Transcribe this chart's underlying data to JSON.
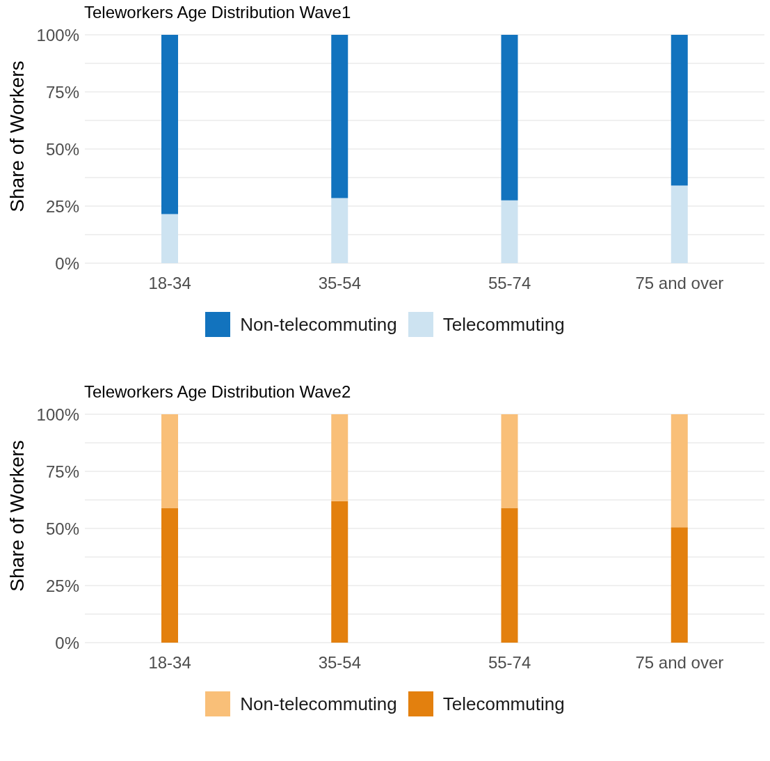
{
  "chart_data": [
    {
      "type": "bar",
      "title": "Teleworkers Age Distribution Wave1",
      "ylabel": "Share of Workers",
      "categories": [
        "18-34",
        "35-54",
        "55-74",
        "75 and over"
      ],
      "stacked": true,
      "series": [
        {
          "name": "Telecommuting",
          "color": "#cde3f1",
          "values": [
            21.5,
            28.5,
            27.5,
            34
          ]
        },
        {
          "name": "Non-telecommuting",
          "color": "#1273be",
          "values": [
            78.5,
            71.5,
            72.5,
            66
          ]
        }
      ],
      "ylim": [
        0,
        100
      ],
      "yticks": [
        {
          "value": 0,
          "label": "0%"
        },
        {
          "value": 12.5,
          "label": null
        },
        {
          "value": 25,
          "label": "25%"
        },
        {
          "value": 37.5,
          "label": null
        },
        {
          "value": 50,
          "label": "50%"
        },
        {
          "value": 62.5,
          "label": null
        },
        {
          "value": 75,
          "label": "75%"
        },
        {
          "value": 87.5,
          "label": null
        },
        {
          "value": 100,
          "label": "100%"
        }
      ],
      "grid": true,
      "legend": "bottom"
    },
    {
      "type": "bar",
      "title": "Teleworkers Age Distribution Wave2",
      "ylabel": "Share of Workers",
      "categories": [
        "18-34",
        "35-54",
        "55-74",
        "75 and over"
      ],
      "stacked": true,
      "series": [
        {
          "name": "Telecommuting",
          "color": "#e3800e",
          "values": [
            59,
            62,
            59,
            50.5
          ]
        },
        {
          "name": "Non-telecommuting",
          "color": "#f9bf78",
          "values": [
            41,
            38,
            41,
            49.5
          ]
        }
      ],
      "ylim": [
        0,
        100
      ],
      "yticks": [
        {
          "value": 0,
          "label": "0%"
        },
        {
          "value": 12.5,
          "label": null
        },
        {
          "value": 25,
          "label": "25%"
        },
        {
          "value": 37.5,
          "label": null
        },
        {
          "value": 50,
          "label": "50%"
        },
        {
          "value": 62.5,
          "label": null
        },
        {
          "value": 75,
          "label": "75%"
        },
        {
          "value": 87.5,
          "label": null
        },
        {
          "value": 100,
          "label": "100%"
        }
      ],
      "grid": true,
      "legend": "bottom"
    }
  ]
}
